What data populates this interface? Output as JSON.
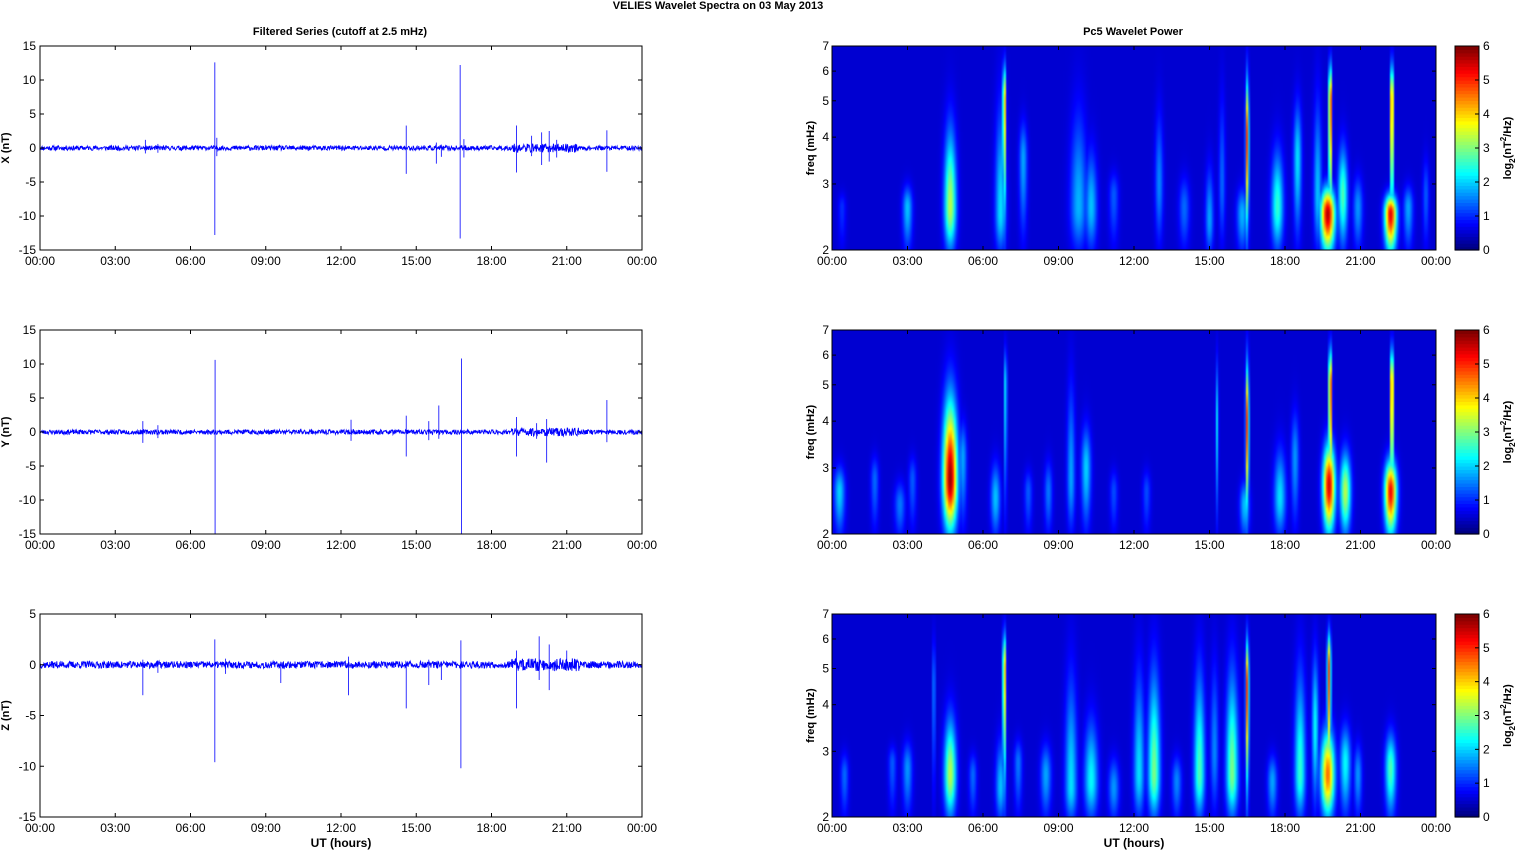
{
  "figure": {
    "title": "VELIES Wavelet Spectra on 03 May       2013",
    "left_title": "Filtered Series (cutoff at 2.5 mHz)",
    "right_title": "Pc5 Wavelet Power"
  },
  "chart_data": [
    {
      "type": "line",
      "panel": "X",
      "ylabel": "X (nT)",
      "xlabel": "",
      "color": "#0000ff",
      "x_ticks": [
        "00:00",
        "03:00",
        "06:00",
        "09:00",
        "12:00",
        "15:00",
        "18:00",
        "21:00",
        "00:00"
      ],
      "xlim_hours": [
        0,
        24
      ],
      "ylim": [
        -15,
        15
      ],
      "y_ticks": [
        -15,
        -10,
        -5,
        0,
        5,
        10,
        15
      ],
      "noise_amp": 0.35,
      "spikes": [
        {
          "t": 4.2,
          "up": 1.2,
          "down": -0.8
        },
        {
          "t": 4.7,
          "up": 0.6,
          "down": -0.7
        },
        {
          "t": 6.97,
          "up": 12.6,
          "down": -12.8
        },
        {
          "t": 7.05,
          "up": 1.5,
          "down": -1.2
        },
        {
          "t": 14.6,
          "up": 3.3,
          "down": -3.8
        },
        {
          "t": 15.8,
          "up": 0.8,
          "down": -2.3
        },
        {
          "t": 16.0,
          "up": 0.5,
          "down": -1.3
        },
        {
          "t": 16.75,
          "up": 12.2,
          "down": -13.3
        },
        {
          "t": 16.9,
          "up": 1.3,
          "down": -1.4
        },
        {
          "t": 19.0,
          "up": 3.3,
          "down": -3.6
        },
        {
          "t": 19.6,
          "up": 1.8,
          "down": -1.2
        },
        {
          "t": 20.0,
          "up": 2.3,
          "down": -2.5
        },
        {
          "t": 20.3,
          "up": 2.5,
          "down": -2.0
        },
        {
          "t": 20.6,
          "up": 1.2,
          "down": -1.4
        },
        {
          "t": 22.6,
          "up": 2.6,
          "down": -3.5
        }
      ],
      "active_band_hours": [
        18.8,
        21.5
      ]
    },
    {
      "type": "line",
      "panel": "Y",
      "ylabel": "Y (nT)",
      "xlabel": "",
      "color": "#0000ff",
      "x_ticks": [
        "00:00",
        "03:00",
        "06:00",
        "09:00",
        "12:00",
        "15:00",
        "18:00",
        "21:00",
        "00:00"
      ],
      "xlim_hours": [
        0,
        24
      ],
      "ylim": [
        -15,
        15
      ],
      "y_ticks": [
        -15,
        -10,
        -5,
        0,
        5,
        10,
        15
      ],
      "noise_amp": 0.35,
      "spikes": [
        {
          "t": 4.1,
          "up": 1.6,
          "down": -1.6
        },
        {
          "t": 4.7,
          "up": 1.0,
          "down": -0.9
        },
        {
          "t": 6.98,
          "up": 10.6,
          "down": -15.0
        },
        {
          "t": 12.4,
          "up": 1.8,
          "down": -1.3
        },
        {
          "t": 14.6,
          "up": 2.4,
          "down": -3.6
        },
        {
          "t": 15.5,
          "up": 1.6,
          "down": -1.2
        },
        {
          "t": 15.9,
          "up": 3.9,
          "down": -1.0
        },
        {
          "t": 16.8,
          "up": 10.8,
          "down": -15.0
        },
        {
          "t": 19.0,
          "up": 2.2,
          "down": -3.6
        },
        {
          "t": 19.8,
          "up": 1.3,
          "down": -1.0
        },
        {
          "t": 20.2,
          "up": 1.9,
          "down": -4.5
        },
        {
          "t": 22.6,
          "up": 4.7,
          "down": -1.5
        }
      ],
      "active_band_hours": [
        18.8,
        21.5
      ]
    },
    {
      "type": "line",
      "panel": "Z",
      "ylabel": "Z (nT)",
      "xlabel": "UT (hours)",
      "color": "#0000ff",
      "x_ticks": [
        "00:00",
        "03:00",
        "06:00",
        "09:00",
        "12:00",
        "15:00",
        "18:00",
        "21:00",
        "00:00"
      ],
      "xlim_hours": [
        0,
        24
      ],
      "ylim": [
        -15,
        5
      ],
      "y_ticks": [
        -15,
        -10,
        -5,
        0,
        5
      ],
      "noise_amp": 0.35,
      "spikes": [
        {
          "t": 4.1,
          "up": 0.5,
          "down": -3.0
        },
        {
          "t": 4.7,
          "up": 0.4,
          "down": -0.8
        },
        {
          "t": 6.97,
          "up": 2.5,
          "down": -9.6
        },
        {
          "t": 7.4,
          "up": 0.6,
          "down": -0.9
        },
        {
          "t": 9.6,
          "up": 0.3,
          "down": -1.8
        },
        {
          "t": 12.3,
          "up": 0.8,
          "down": -3.0
        },
        {
          "t": 14.6,
          "up": 0.3,
          "down": -4.3
        },
        {
          "t": 15.5,
          "up": 0.5,
          "down": -2.0
        },
        {
          "t": 16.0,
          "up": 0.3,
          "down": -1.5
        },
        {
          "t": 16.78,
          "up": 2.4,
          "down": -10.2
        },
        {
          "t": 19.0,
          "up": 1.4,
          "down": -4.3
        },
        {
          "t": 19.9,
          "up": 2.8,
          "down": -1.5
        },
        {
          "t": 20.3,
          "up": 2.0,
          "down": -2.5
        },
        {
          "t": 21.0,
          "up": 1.4,
          "down": -0.6
        }
      ],
      "active_band_hours": [
        18.8,
        21.5
      ]
    },
    {
      "type": "heatmap",
      "panel": "X",
      "xlabel": "",
      "ylabel": "freq (mHz)",
      "colorbar_label": "log2(nT2/Hz)",
      "x_ticks": [
        "00:00",
        "03:00",
        "06:00",
        "09:00",
        "12:00",
        "15:00",
        "18:00",
        "21:00",
        "00:00"
      ],
      "xlim_hours": [
        0,
        24
      ],
      "y_scale": "log",
      "ylim": [
        2,
        7
      ],
      "y_ticks": [
        2,
        3,
        4,
        5,
        6,
        7
      ],
      "clim": [
        0,
        6
      ],
      "cbar_ticks": [
        0,
        1,
        2,
        3,
        4,
        5,
        6
      ],
      "colormap": "jet",
      "blobs": [
        {
          "t": 0.4,
          "f": 2.6,
          "a": 0.6,
          "w": 0.15,
          "top": 3.0
        },
        {
          "t": 3.0,
          "f": 2.6,
          "a": 1.6,
          "w": 0.18,
          "top": 3.2
        },
        {
          "t": 4.7,
          "f": 2.6,
          "a": 3.2,
          "w": 0.22,
          "top": 5.5
        },
        {
          "t": 6.7,
          "f": 2.5,
          "a": 1.8,
          "w": 0.2,
          "top": 7
        },
        {
          "t": 6.85,
          "f": 5.0,
          "a": 4.5,
          "w": 0.06,
          "top": 7
        },
        {
          "t": 7.6,
          "f": 3.5,
          "a": 1.4,
          "w": 0.15,
          "top": 5.0
        },
        {
          "t": 9.8,
          "f": 2.6,
          "a": 1.5,
          "w": 0.3,
          "top": 6.5
        },
        {
          "t": 10.3,
          "f": 2.6,
          "a": 1.6,
          "w": 0.22,
          "top": 4.5
        },
        {
          "t": 11.2,
          "f": 2.8,
          "a": 0.9,
          "w": 0.18,
          "top": 3.5
        },
        {
          "t": 13.0,
          "f": 3.0,
          "a": 1.2,
          "w": 0.15,
          "top": 6.0
        },
        {
          "t": 14.0,
          "f": 2.6,
          "a": 1.0,
          "w": 0.2,
          "top": 3.5
        },
        {
          "t": 15.0,
          "f": 2.4,
          "a": 1.4,
          "w": 0.15,
          "top": 4.0
        },
        {
          "t": 15.5,
          "f": 3.0,
          "a": 1.0,
          "w": 0.12,
          "top": 7
        },
        {
          "t": 16.5,
          "f": 4.0,
          "a": 5.0,
          "w": 0.06,
          "top": 7
        },
        {
          "t": 16.3,
          "f": 2.5,
          "a": 1.5,
          "w": 0.2,
          "top": 3.2
        },
        {
          "t": 17.7,
          "f": 2.6,
          "a": 2.3,
          "w": 0.22,
          "top": 4.5
        },
        {
          "t": 18.5,
          "f": 3.5,
          "a": 1.8,
          "w": 0.15,
          "top": 6.0
        },
        {
          "t": 19.3,
          "f": 2.8,
          "a": 1.6,
          "w": 0.15,
          "top": 7
        },
        {
          "t": 19.7,
          "f": 2.5,
          "a": 5.8,
          "w": 0.26,
          "top": 3.2
        },
        {
          "t": 19.8,
          "f": 5.0,
          "a": 5.5,
          "w": 0.06,
          "top": 7
        },
        {
          "t": 20.3,
          "f": 2.8,
          "a": 2.5,
          "w": 0.18,
          "top": 4.5
        },
        {
          "t": 20.9,
          "f": 2.6,
          "a": 1.3,
          "w": 0.18,
          "top": 3.5
        },
        {
          "t": 22.2,
          "f": 2.5,
          "a": 5.5,
          "w": 0.22,
          "top": 3.0
        },
        {
          "t": 22.25,
          "f": 5.0,
          "a": 5.5,
          "w": 0.06,
          "top": 7
        },
        {
          "t": 22.9,
          "f": 2.6,
          "a": 1.4,
          "w": 0.18,
          "top": 3.2
        },
        {
          "t": 23.6,
          "f": 2.8,
          "a": 0.9,
          "w": 0.12,
          "top": 4.0
        }
      ]
    },
    {
      "type": "heatmap",
      "panel": "Y",
      "xlabel": "",
      "ylabel": "freq (mHz)",
      "colorbar_label": "log2(nT2/Hz)",
      "x_ticks": [
        "00:00",
        "03:00",
        "06:00",
        "09:00",
        "12:00",
        "15:00",
        "18:00",
        "21:00",
        "00:00"
      ],
      "xlim_hours": [
        0,
        24
      ],
      "y_scale": "log",
      "ylim": [
        2,
        7
      ],
      "y_ticks": [
        2,
        3,
        4,
        5,
        6,
        7
      ],
      "clim": [
        0,
        6
      ],
      "cbar_ticks": [
        0,
        1,
        2,
        3,
        4,
        5,
        6
      ],
      "colormap": "jet",
      "blobs": [
        {
          "t": 0.3,
          "f": 2.6,
          "a": 1.7,
          "w": 0.2,
          "top": 3.3
        },
        {
          "t": 1.7,
          "f": 2.8,
          "a": 1.0,
          "w": 0.15,
          "top": 3.5
        },
        {
          "t": 2.7,
          "f": 2.4,
          "a": 1.1,
          "w": 0.2,
          "top": 3.0
        },
        {
          "t": 3.2,
          "f": 2.8,
          "a": 0.9,
          "w": 0.15,
          "top": 3.5
        },
        {
          "t": 4.7,
          "f": 2.8,
          "a": 6.0,
          "w": 0.26,
          "top": 6.0
        },
        {
          "t": 5.2,
          "f": 3.2,
          "a": 1.4,
          "w": 0.15,
          "top": 4.5
        },
        {
          "t": 6.5,
          "f": 2.5,
          "a": 1.6,
          "w": 0.18,
          "top": 3.5
        },
        {
          "t": 6.9,
          "f": 5.0,
          "a": 2.2,
          "w": 0.05,
          "top": 7
        },
        {
          "t": 7.8,
          "f": 2.6,
          "a": 0.9,
          "w": 0.15,
          "top": 3.2
        },
        {
          "t": 8.6,
          "f": 2.6,
          "a": 1.1,
          "w": 0.15,
          "top": 3.5
        },
        {
          "t": 9.5,
          "f": 2.8,
          "a": 1.4,
          "w": 0.15,
          "top": 7
        },
        {
          "t": 10.1,
          "f": 3.0,
          "a": 1.7,
          "w": 0.18,
          "top": 4.5
        },
        {
          "t": 11.2,
          "f": 2.6,
          "a": 0.8,
          "w": 0.15,
          "top": 3.2
        },
        {
          "t": 12.5,
          "f": 2.6,
          "a": 0.8,
          "w": 0.15,
          "top": 3.2
        },
        {
          "t": 15.3,
          "f": 4.0,
          "a": 1.8,
          "w": 0.05,
          "top": 7
        },
        {
          "t": 16.5,
          "f": 4.0,
          "a": 5.0,
          "w": 0.06,
          "top": 7
        },
        {
          "t": 16.4,
          "f": 2.4,
          "a": 1.6,
          "w": 0.18,
          "top": 3.0
        },
        {
          "t": 17.8,
          "f": 2.5,
          "a": 1.8,
          "w": 0.22,
          "top": 4.0
        },
        {
          "t": 18.4,
          "f": 3.2,
          "a": 1.3,
          "w": 0.15,
          "top": 5.0
        },
        {
          "t": 19.75,
          "f": 2.7,
          "a": 5.6,
          "w": 0.22,
          "top": 4.0
        },
        {
          "t": 19.8,
          "f": 5.0,
          "a": 5.5,
          "w": 0.06,
          "top": 7
        },
        {
          "t": 20.4,
          "f": 2.6,
          "a": 3.2,
          "w": 0.2,
          "top": 3.8
        },
        {
          "t": 22.2,
          "f": 2.6,
          "a": 5.4,
          "w": 0.22,
          "top": 3.5
        },
        {
          "t": 22.25,
          "f": 5.0,
          "a": 5.5,
          "w": 0.06,
          "top": 7
        }
      ]
    },
    {
      "type": "heatmap",
      "panel": "Z",
      "xlabel": "UT (hours)",
      "ylabel": "freq (mHz)",
      "colorbar_label": "log2(nT2/Hz)",
      "x_ticks": [
        "00:00",
        "03:00",
        "06:00",
        "09:00",
        "12:00",
        "15:00",
        "18:00",
        "21:00",
        "00:00"
      ],
      "xlim_hours": [
        0,
        24
      ],
      "y_scale": "log",
      "ylim": [
        2,
        7
      ],
      "y_ticks": [
        2,
        3,
        4,
        5,
        6,
        7
      ],
      "clim": [
        0,
        6
      ],
      "cbar_ticks": [
        0,
        1,
        2,
        3,
        4,
        5,
        6
      ],
      "colormap": "jet",
      "blobs": [
        {
          "t": 0.5,
          "f": 2.6,
          "a": 1.0,
          "w": 0.15,
          "top": 3.2
        },
        {
          "t": 2.4,
          "f": 2.8,
          "a": 0.9,
          "w": 0.15,
          "top": 3.3
        },
        {
          "t": 3.0,
          "f": 2.7,
          "a": 1.3,
          "w": 0.18,
          "top": 3.5
        },
        {
          "t": 4.05,
          "f": 4.5,
          "a": 1.5,
          "w": 0.05,
          "top": 7
        },
        {
          "t": 4.7,
          "f": 2.6,
          "a": 3.2,
          "w": 0.22,
          "top": 4.5
        },
        {
          "t": 5.6,
          "f": 2.6,
          "a": 1.0,
          "w": 0.15,
          "top": 3.2
        },
        {
          "t": 6.7,
          "f": 2.4,
          "a": 1.6,
          "w": 0.18,
          "top": 3.8
        },
        {
          "t": 6.85,
          "f": 5.0,
          "a": 4.5,
          "w": 0.06,
          "top": 7
        },
        {
          "t": 7.4,
          "f": 2.8,
          "a": 1.1,
          "w": 0.15,
          "top": 3.5
        },
        {
          "t": 8.5,
          "f": 2.6,
          "a": 1.4,
          "w": 0.2,
          "top": 3.5
        },
        {
          "t": 9.5,
          "f": 2.4,
          "a": 1.8,
          "w": 0.22,
          "top": 7
        },
        {
          "t": 10.3,
          "f": 2.5,
          "a": 2.0,
          "w": 0.25,
          "top": 4.5
        },
        {
          "t": 11.2,
          "f": 2.4,
          "a": 1.3,
          "w": 0.2,
          "top": 3.2
        },
        {
          "t": 12.2,
          "f": 2.6,
          "a": 1.8,
          "w": 0.2,
          "top": 7
        },
        {
          "t": 12.8,
          "f": 2.6,
          "a": 2.8,
          "w": 0.22,
          "top": 7
        },
        {
          "t": 13.7,
          "f": 2.5,
          "a": 1.2,
          "w": 0.18,
          "top": 3.2
        },
        {
          "t": 14.6,
          "f": 2.6,
          "a": 2.5,
          "w": 0.2,
          "top": 7
        },
        {
          "t": 15.2,
          "f": 3.0,
          "a": 1.2,
          "w": 0.15,
          "top": 7
        },
        {
          "t": 15.9,
          "f": 2.6,
          "a": 2.8,
          "w": 0.22,
          "top": 7
        },
        {
          "t": 16.5,
          "f": 4.5,
          "a": 5.0,
          "w": 0.06,
          "top": 7
        },
        {
          "t": 17.5,
          "f": 2.5,
          "a": 1.4,
          "w": 0.18,
          "top": 3.2
        },
        {
          "t": 18.6,
          "f": 2.6,
          "a": 2.3,
          "w": 0.2,
          "top": 7
        },
        {
          "t": 19.2,
          "f": 3.5,
          "a": 2.0,
          "w": 0.12,
          "top": 7
        },
        {
          "t": 19.7,
          "f": 2.6,
          "a": 4.6,
          "w": 0.25,
          "top": 4.0
        },
        {
          "t": 19.75,
          "f": 5.0,
          "a": 4.8,
          "w": 0.07,
          "top": 7
        },
        {
          "t": 20.4,
          "f": 2.8,
          "a": 2.0,
          "w": 0.2,
          "top": 4.0
        },
        {
          "t": 20.9,
          "f": 2.6,
          "a": 1.3,
          "w": 0.15,
          "top": 3.5
        },
        {
          "t": 22.2,
          "f": 2.7,
          "a": 2.5,
          "w": 0.2,
          "top": 3.8
        }
      ]
    }
  ]
}
